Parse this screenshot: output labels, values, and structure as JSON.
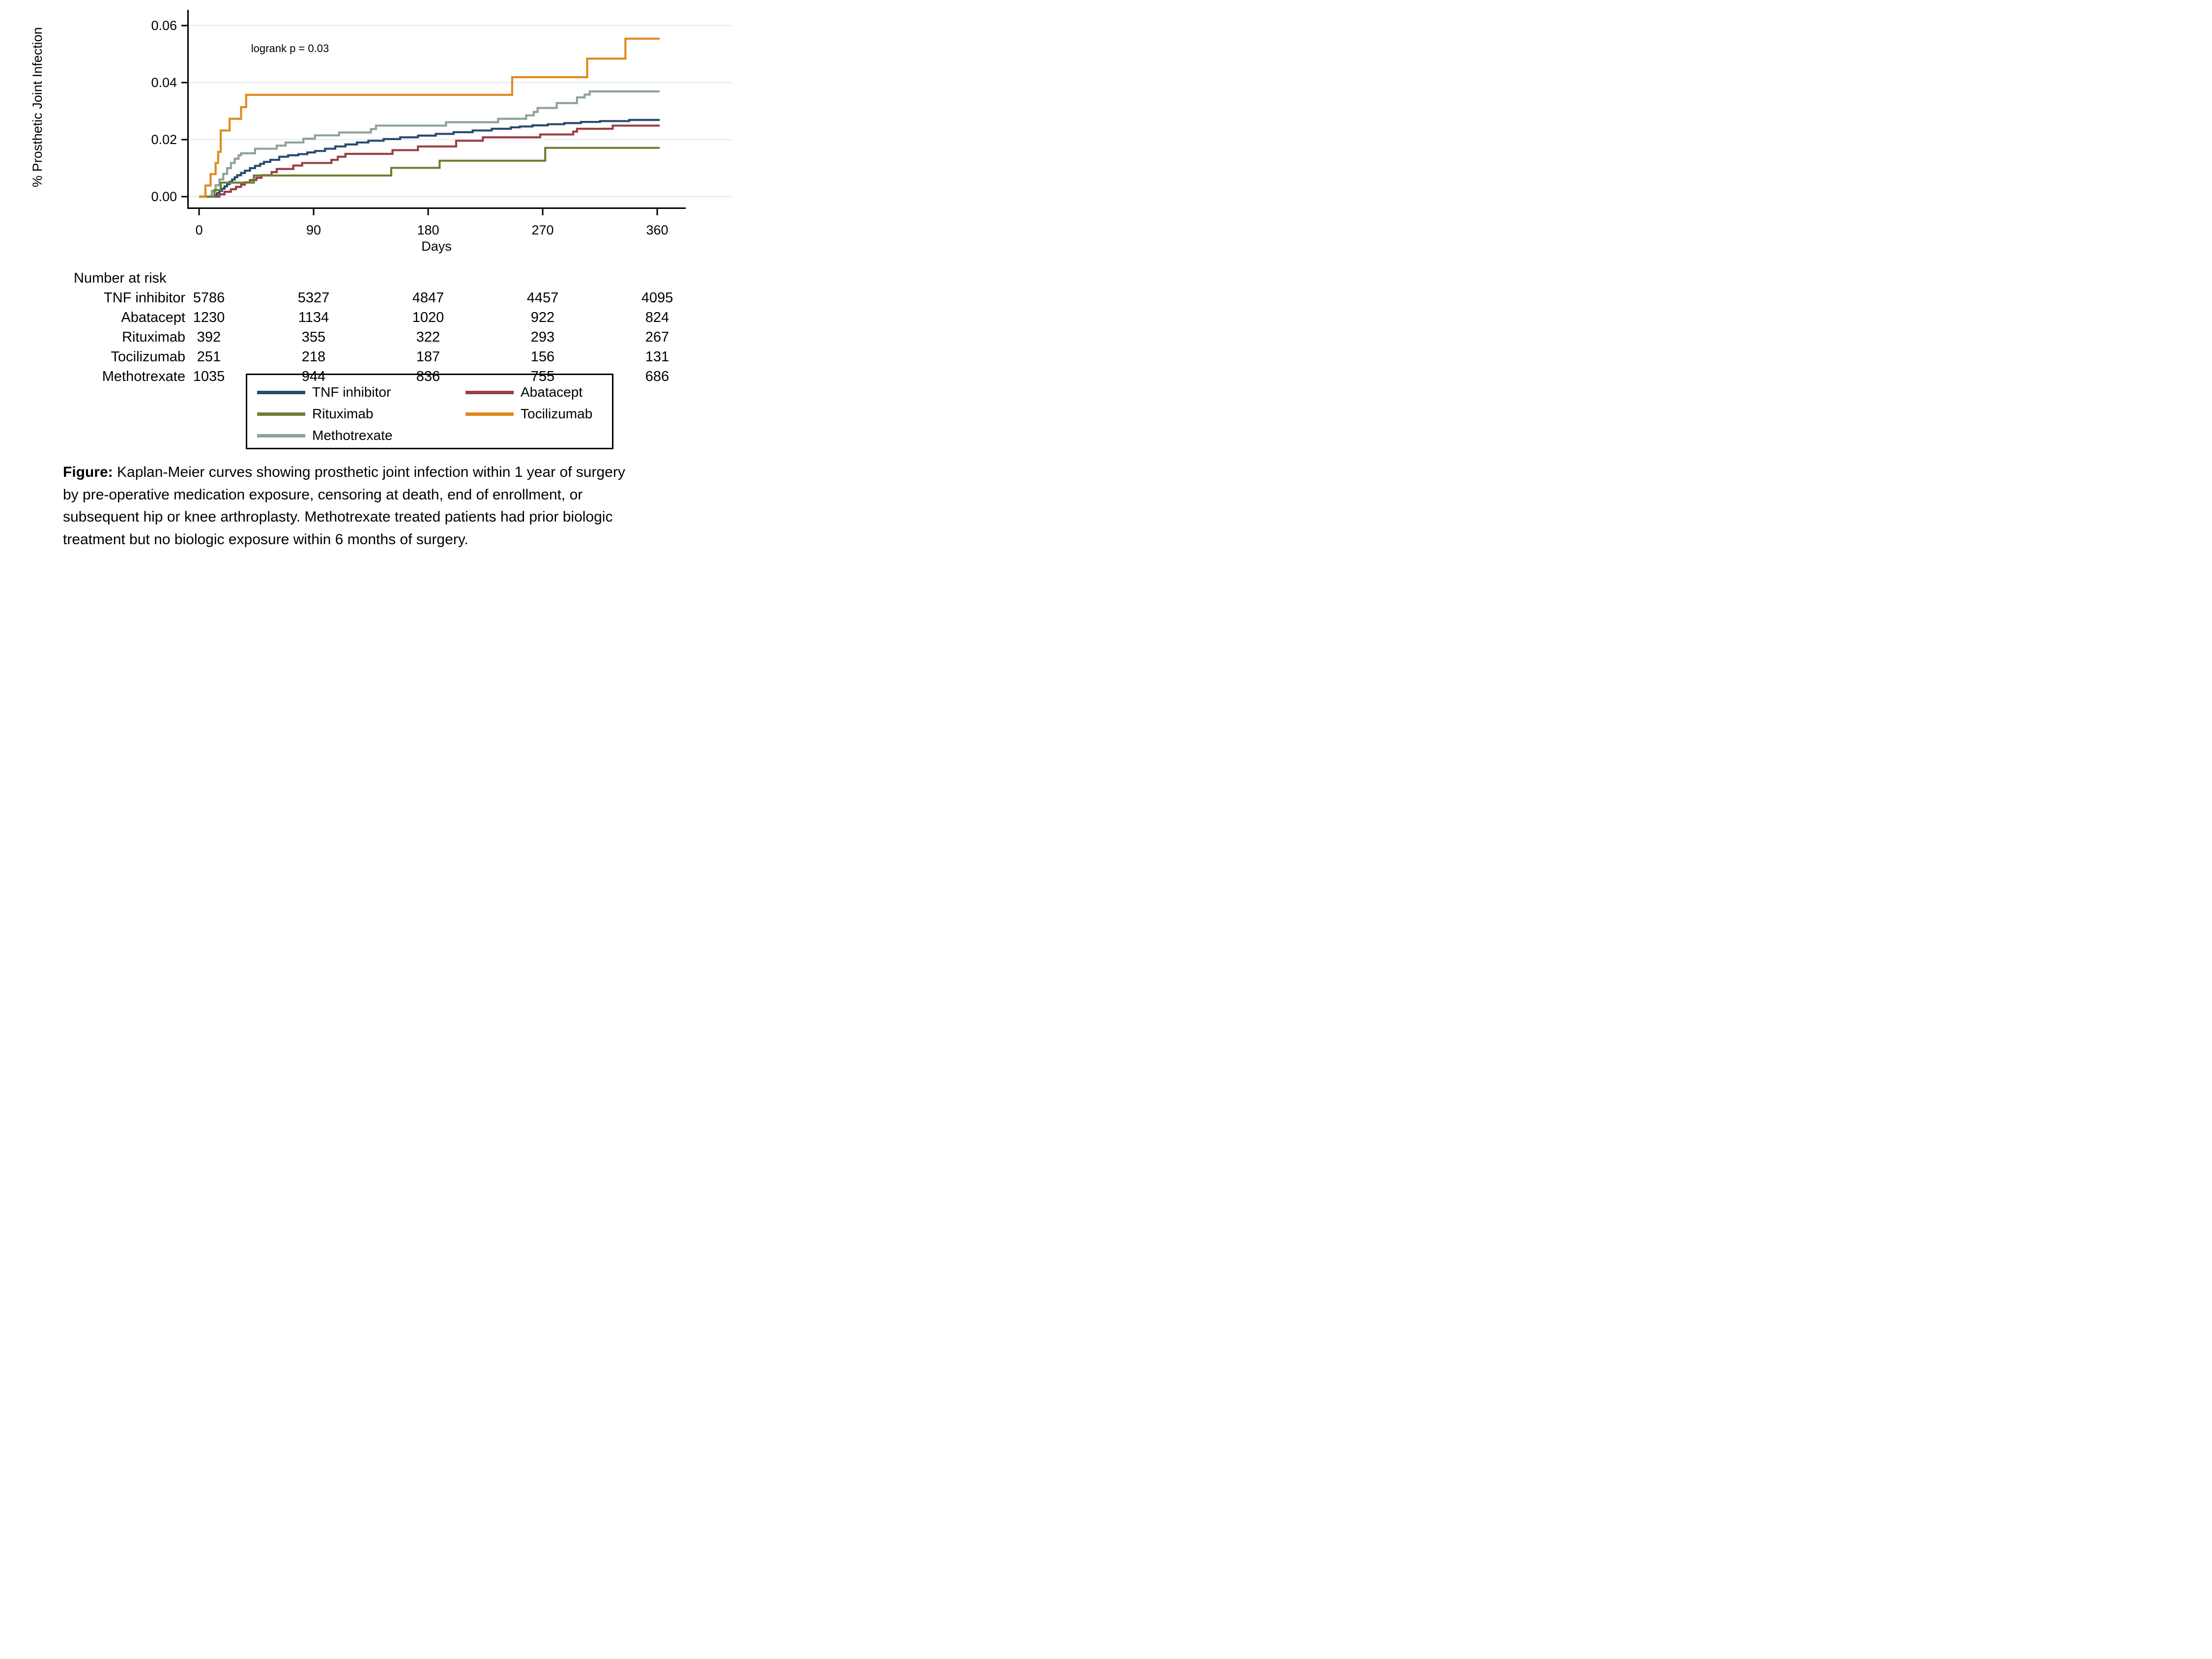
{
  "chart_data": {
    "type": "line",
    "subtype": "kaplan-meier-step",
    "title": "",
    "ylabel": "% Prosthetic Joint Infection",
    "xlabel": "Days",
    "annotation": "logrank p = 0.03",
    "xlim": [
      0,
      372
    ],
    "ylim": [
      0,
      0.0645
    ],
    "xticks": [
      0,
      90,
      180,
      270,
      360
    ],
    "yticks": [
      {
        "value": 0.0,
        "label": "0.00"
      },
      {
        "value": 0.02,
        "label": "0.02"
      },
      {
        "value": 0.04,
        "label": "0.04"
      },
      {
        "value": 0.06,
        "label": "0.06"
      }
    ],
    "grid": "horizontal",
    "legend_position": "bottom-box-two-columns",
    "colors": {
      "grid": "#eaeef5",
      "axis": "#000000",
      "background": "#ffffff"
    },
    "series": [
      {
        "name": "TNF inhibitor",
        "color": "#2a4b6e",
        "steps": [
          [
            0,
            0
          ],
          [
            12,
            0.0005
          ],
          [
            14,
            0.0012
          ],
          [
            16,
            0.002
          ],
          [
            18,
            0.0028
          ],
          [
            20,
            0.0036
          ],
          [
            22,
            0.0044
          ],
          [
            24,
            0.0052
          ],
          [
            26,
            0.006
          ],
          [
            28,
            0.0068
          ],
          [
            30,
            0.0075
          ],
          [
            33,
            0.0083
          ],
          [
            36,
            0.0091
          ],
          [
            40,
            0.01
          ],
          [
            44,
            0.0108
          ],
          [
            48,
            0.0115
          ],
          [
            51,
            0.0122
          ],
          [
            56,
            0.0129
          ],
          [
            63,
            0.014
          ],
          [
            70,
            0.0145
          ],
          [
            78,
            0.0149
          ],
          [
            85,
            0.0155
          ],
          [
            91,
            0.016
          ],
          [
            99,
            0.0168
          ],
          [
            107,
            0.0176
          ],
          [
            115,
            0.0183
          ],
          [
            124,
            0.019
          ],
          [
            133,
            0.0196
          ],
          [
            145,
            0.0202
          ],
          [
            158,
            0.0208
          ],
          [
            172,
            0.0214
          ],
          [
            186,
            0.022
          ],
          [
            200,
            0.0226
          ],
          [
            215,
            0.0232
          ],
          [
            230,
            0.0238
          ],
          [
            245,
            0.0243
          ],
          [
            252,
            0.0246
          ],
          [
            262,
            0.025
          ],
          [
            274,
            0.0254
          ],
          [
            287,
            0.0258
          ],
          [
            300,
            0.0262
          ],
          [
            315,
            0.0265
          ],
          [
            338,
            0.0269
          ],
          [
            362,
            0.0269
          ]
        ]
      },
      {
        "name": "Abatacept",
        "color": "#9a3e44",
        "steps": [
          [
            0,
            0
          ],
          [
            16,
            0.0008
          ],
          [
            20,
            0.0017
          ],
          [
            25,
            0.0026
          ],
          [
            29,
            0.0034
          ],
          [
            33,
            0.0042
          ],
          [
            36,
            0.005
          ],
          [
            40,
            0.0058
          ],
          [
            45,
            0.0066
          ],
          [
            49,
            0.0075
          ],
          [
            57,
            0.0086
          ],
          [
            61,
            0.0097
          ],
          [
            74,
            0.0109
          ],
          [
            81,
            0.0118
          ],
          [
            104,
            0.0129
          ],
          [
            109,
            0.014
          ],
          [
            115,
            0.015
          ],
          [
            152,
            0.0163
          ],
          [
            172,
            0.0176
          ],
          [
            202,
            0.0196
          ],
          [
            223,
            0.0208
          ],
          [
            268,
            0.0218
          ],
          [
            294,
            0.0228
          ],
          [
            297,
            0.0238
          ],
          [
            325,
            0.0249
          ],
          [
            362,
            0.0249
          ]
        ]
      },
      {
        "name": "Rituximab",
        "color": "#6c8033",
        "steps": [
          [
            0,
            0
          ],
          [
            12,
            0.0023
          ],
          [
            17,
            0.0049
          ],
          [
            43,
            0.0074
          ],
          [
            151,
            0.0101
          ],
          [
            189,
            0.0126
          ],
          [
            272,
            0.0171
          ],
          [
            362,
            0.0171
          ]
        ]
      },
      {
        "name": "Tocilizumab",
        "color": "#df8a1e",
        "steps": [
          [
            0,
            0
          ],
          [
            5,
            0.0039
          ],
          [
            9,
            0.0079
          ],
          [
            13,
            0.0118
          ],
          [
            15,
            0.0157
          ],
          [
            17,
            0.0232
          ],
          [
            24,
            0.0273
          ],
          [
            33,
            0.0314
          ],
          [
            37,
            0.0357
          ],
          [
            246,
            0.0419
          ],
          [
            305,
            0.0484
          ],
          [
            335,
            0.0554
          ],
          [
            362,
            0.0554
          ]
        ]
      },
      {
        "name": "Methotrexate",
        "color": "#8da19a",
        "steps": [
          [
            0,
            0
          ],
          [
            10,
            0.002
          ],
          [
            13,
            0.004
          ],
          [
            16,
            0.006
          ],
          [
            19,
            0.008
          ],
          [
            22,
            0.01
          ],
          [
            25,
            0.0118
          ],
          [
            28,
            0.0133
          ],
          [
            31,
            0.0145
          ],
          [
            33,
            0.0152
          ],
          [
            44,
            0.0168
          ],
          [
            61,
            0.0179
          ],
          [
            68,
            0.019
          ],
          [
            82,
            0.0203
          ],
          [
            91,
            0.0215
          ],
          [
            110,
            0.0225
          ],
          [
            135,
            0.0237
          ],
          [
            139,
            0.0249
          ],
          [
            194,
            0.0261
          ],
          [
            235,
            0.0273
          ],
          [
            257,
            0.0285
          ],
          [
            263,
            0.0297
          ],
          [
            266,
            0.0311
          ],
          [
            281,
            0.0328
          ],
          [
            297,
            0.0348
          ],
          [
            303,
            0.0358
          ],
          [
            307,
            0.0369
          ],
          [
            362,
            0.0369
          ]
        ]
      }
    ],
    "draw_order": [
      "Methotrexate",
      "TNF inhibitor",
      "Abatacept",
      "Rituximab",
      "Tocilizumab"
    ]
  },
  "risk_table": {
    "title": "Number at risk",
    "columns": [
      0,
      90,
      180,
      270,
      360
    ],
    "rows": [
      {
        "label": "TNF inhibitor",
        "values": [
          "5786",
          "5327",
          "4847",
          "4457",
          "4095"
        ]
      },
      {
        "label": "Abatacept",
        "values": [
          "1230",
          "1134",
          "1020",
          "922",
          "824"
        ]
      },
      {
        "label": "Rituximab",
        "values": [
          "392",
          "355",
          "322",
          "293",
          "267"
        ]
      },
      {
        "label": "Tocilizumab",
        "values": [
          "251",
          "218",
          "187",
          "156",
          "131"
        ]
      },
      {
        "label": "Methotrexate",
        "values": [
          "1035",
          "944",
          "836",
          "755",
          "686"
        ]
      }
    ]
  },
  "legend": {
    "items": [
      {
        "label": "TNF inhibitor",
        "color": "#2a4b6e"
      },
      {
        "label": "Abatacept",
        "color": "#9a3e44"
      },
      {
        "label": "Rituximab",
        "color": "#6c8033"
      },
      {
        "label": "Tocilizumab",
        "color": "#df8a1e"
      },
      {
        "label": "Methotrexate",
        "color": "#8da19a"
      }
    ]
  },
  "caption": {
    "lines": [
      {
        "bold": "Figure:",
        "text": " Kaplan-Meier curves showing prosthetic joint infection within 1 year of surgery"
      },
      {
        "bold": "",
        "text": "by pre-operative medication exposure, censoring at death, end of enrollment, or"
      },
      {
        "bold": "",
        "text": "subsequent hip or knee arthroplasty. Methotrexate treated patients had prior biologic"
      },
      {
        "bold": "",
        "text": "treatment but no biologic exposure within 6 months of surgery."
      }
    ]
  }
}
